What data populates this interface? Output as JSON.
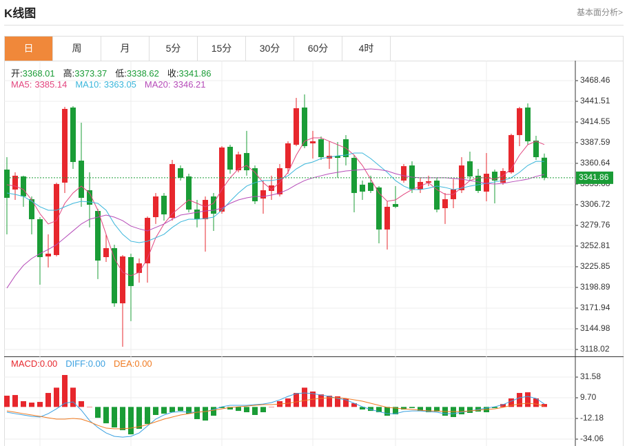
{
  "header": {
    "title": "K线图",
    "link": "基本面分析>"
  },
  "tabs": {
    "items": [
      "日",
      "周",
      "月",
      "5分",
      "15分",
      "30分",
      "60分",
      "4时"
    ],
    "active": 0
  },
  "chart_data": [
    {
      "type": "candlestick",
      "info_labels": [
        "开:",
        "高:",
        "低:",
        "收:"
      ],
      "info_color": "#1a9c36",
      "up_color": "#e7272d",
      "down_color": "#1a9c36",
      "open": [
        3352.5,
        3326.5,
        3343.6,
        3313.9,
        3287.8,
        3239.3,
        3241.1,
        3335.5,
        3433.4,
        3364.2,
        3325.6,
        3298.6,
        3238.4,
        3250.1,
        3178.2,
        3238.4,
        3217.8,
        3230.3,
        3290.5,
        3318.4,
        3289.6,
        3354.3,
        3343.6,
        3300.4,
        3287.8,
        3317.5,
        3297.7,
        3382.2,
        3351.6,
        3374.1,
        3354.3,
        3314.8,
        3324.7,
        3320.2,
        3354.3,
        3384.9,
        3433.4,
        3386.7,
        3392.1,
        3366.9,
        3370.5,
        3392.1,
        3367.8,
        3332.8,
        3335.5,
        3329.2,
        3274.4,
        3307.6,
        3338.2,
        3357.9,
        3326.5,
        3335.5,
        3338.2,
        3302.2,
        3313.9,
        3325.6,
        3363.3,
        3344.5,
        3323.8,
        3349.8,
        3335.5,
        3348.9,
        3397.5,
        3433.4,
        3390.3,
        3368.01
      ],
      "high": [
        3368.7,
        3348.9,
        3344.5,
        3317.5,
        3290.5,
        3268.1,
        3335.5,
        3434.3,
        3435.2,
        3413.6,
        3348.9,
        3301.3,
        3268.1,
        3254.6,
        3241.1,
        3242.9,
        3236.6,
        3291.4,
        3322.0,
        3322.0,
        3365.1,
        3357.9,
        3347.1,
        3313.0,
        3317.5,
        3322.0,
        3383.1,
        3384.9,
        3375.9,
        3402.9,
        3357.9,
        3338.2,
        3344.5,
        3359.7,
        3389.4,
        3446.0,
        3450.5,
        3402.9,
        3395.7,
        3389.4,
        3388.5,
        3397.5,
        3371.4,
        3338.2,
        3344.5,
        3331.0,
        3311.2,
        3331.0,
        3359.7,
        3363.3,
        3341.8,
        3344.5,
        3341.8,
        3322.0,
        3340.0,
        3368.7,
        3375.9,
        3353.4,
        3374.1,
        3352.5,
        3354.3,
        3399.3,
        3434.3,
        3438.8,
        3396.6,
        3373.37
      ],
      "low": [
        3268.1,
        3313.0,
        3304.0,
        3268.1,
        3202.5,
        3224.9,
        3239.3,
        3322.0,
        3353.4,
        3304.0,
        3277.1,
        3209.7,
        3232.1,
        3173.7,
        3121.6,
        3154.9,
        3205.2,
        3205.2,
        3281.6,
        3286.0,
        3286.0,
        3338.2,
        3296.8,
        3277.1,
        3245.6,
        3272.6,
        3295.0,
        3347.1,
        3348.9,
        3344.5,
        3307.6,
        3295.0,
        3313.0,
        3317.5,
        3347.1,
        3383.1,
        3380.4,
        3366.9,
        3365.1,
        3353.4,
        3341.8,
        3357.9,
        3296.8,
        3313.0,
        3322.0,
        3256.4,
        3248.3,
        3302.2,
        3335.5,
        3322.0,
        3322.0,
        3331.0,
        3296.8,
        3281.6,
        3302.2,
        3322.0,
        3338.2,
        3322.0,
        3311.2,
        3308.5,
        3332.8,
        3347.1,
        3383.1,
        3384.9,
        3365.1,
        3338.62
      ],
      "close": [
        3315.7,
        3344.5,
        3317.5,
        3287.8,
        3238.4,
        3242.9,
        3333.7,
        3431.6,
        3362.4,
        3315.7,
        3306.7,
        3233.9,
        3250.1,
        3178.2,
        3239.3,
        3200.7,
        3230.3,
        3289.6,
        3317.5,
        3294.1,
        3359.7,
        3341.8,
        3300.4,
        3287.8,
        3313.0,
        3295.0,
        3381.3,
        3352.5,
        3372.3,
        3351.6,
        3311.2,
        3325.6,
        3331.9,
        3354.3,
        3386.7,
        3432.5,
        3383.1,
        3389.4,
        3368.7,
        3370.5,
        3367.8,
        3368.7,
        3322.0,
        3323.8,
        3324.7,
        3274.4,
        3304.0,
        3304.0,
        3357.0,
        3326.5,
        3336.4,
        3337.3,
        3300.4,
        3313.9,
        3326.5,
        3357.9,
        3343.6,
        3324.7,
        3347.1,
        3338.2,
        3350.7,
        3397.5,
        3432.5,
        3389.4,
        3368.7,
        3341.86
      ],
      "series": [
        {
          "name": "MA5:",
          "color": "#e2457e",
          "values": [
            3332.8,
            3331.0,
            3326.5,
            3313.0,
            3295.0,
            3281.6,
            3286.0,
            3308.5,
            3322.0,
            3331.0,
            3322.0,
            3299.5,
            3268.1,
            3236.6,
            3218.7,
            3214.2,
            3218.7,
            3236.6,
            3263.6,
            3281.6,
            3295.0,
            3304.0,
            3313.0,
            3308.5,
            3304.0,
            3308.5,
            3326.5,
            3341.8,
            3353.4,
            3357.9,
            3348.9,
            3335.5,
            3326.5,
            3335.5,
            3348.9,
            3371.4,
            3389.4,
            3393.9,
            3393.9,
            3389.4,
            3384.9,
            3380.4,
            3371.4,
            3357.9,
            3340.0,
            3322.0,
            3311.2,
            3313.0,
            3320.2,
            3326.5,
            3331.0,
            3335.5,
            3326.5,
            3320.2,
            3320.2,
            3329.2,
            3338.2,
            3341.8,
            3341.8,
            3340.0,
            3344.5,
            3353.4,
            3371.4,
            3384.9,
            3389.4,
            3385.14
          ]
        },
        {
          "name": "MA10:",
          "color": "#3ab6db",
          "values": [
            3322.0,
            3320.2,
            3317.5,
            3311.2,
            3304.0,
            3299.5,
            3299.5,
            3304.0,
            3308.5,
            3311.2,
            3310.3,
            3308.5,
            3299.5,
            3281.6,
            3268.1,
            3259.1,
            3257.3,
            3259.1,
            3263.6,
            3268.1,
            3277.1,
            3284.3,
            3287.8,
            3287.8,
            3288.7,
            3290.5,
            3299.5,
            3311.2,
            3322.0,
            3331.0,
            3335.5,
            3338.2,
            3338.2,
            3340.0,
            3344.5,
            3353.4,
            3359.7,
            3362.4,
            3366.9,
            3368.7,
            3370.5,
            3371.4,
            3374.1,
            3374.1,
            3366.9,
            3357.9,
            3348.9,
            3338.2,
            3331.0,
            3326.5,
            3326.5,
            3328.3,
            3331.0,
            3329.2,
            3326.5,
            3328.3,
            3331.0,
            3332.8,
            3334.6,
            3336.4,
            3338.2,
            3341.8,
            3348.9,
            3357.9,
            3363.3,
            3363.05
          ]
        },
        {
          "name": "MA20:",
          "color": "#b54ab8",
          "values": [
            3198.0,
            3214.2,
            3227.6,
            3236.6,
            3242.9,
            3248.3,
            3254.6,
            3263.6,
            3272.6,
            3281.6,
            3287.8,
            3290.5,
            3293.2,
            3290.5,
            3286.0,
            3278.9,
            3275.3,
            3272.6,
            3277.1,
            3281.6,
            3287.8,
            3293.2,
            3295.0,
            3296.8,
            3298.6,
            3299.5,
            3302.2,
            3308.5,
            3313.0,
            3315.7,
            3317.5,
            3317.5,
            3319.3,
            3322.0,
            3326.5,
            3332.8,
            3338.2,
            3341.8,
            3344.5,
            3347.1,
            3348.9,
            3350.7,
            3351.6,
            3352.5,
            3353.4,
            3352.5,
            3350.7,
            3347.1,
            3344.5,
            3342.6,
            3341.8,
            3341.8,
            3341.8,
            3341.8,
            3340.9,
            3340.0,
            3338.2,
            3336.4,
            3334.6,
            3333.7,
            3334.6,
            3336.4,
            3338.2,
            3340.0,
            3343.6,
            3346.21
          ]
        }
      ],
      "ylim": [
        3109.0,
        3492.7
      ],
      "yticks": [
        3468.46,
        3441.51,
        3414.55,
        3387.59,
        3360.64,
        3333.68,
        3306.72,
        3279.76,
        3252.81,
        3225.85,
        3198.89,
        3171.94,
        3144.98,
        3118.02
      ],
      "grid": true
    },
    {
      "type": "macd",
      "up_color": "#e7272d",
      "down_color": "#1a9c36",
      "series": [
        {
          "name": "MACD:",
          "color": "#e7272d",
          "legend_value": {
            "value": 0,
            "label": "0.00"
          },
          "values": [
            11.9,
            12.6,
            6.1,
            4.6,
            5.3,
            14.8,
            20.4,
            33.8,
            20.4,
            6.1,
            0.2,
            -11.5,
            -17.3,
            -21.7,
            -24.6,
            -29.0,
            -23.1,
            -18.0,
            -8.5,
            -7.1,
            -5.6,
            -4.2,
            -7.1,
            -12.9,
            -14.4,
            -9.3,
            -1.2,
            -2.7,
            -4.2,
            -5.6,
            -8.5,
            -5.6,
            0.2,
            6.1,
            9.0,
            14.8,
            20.4,
            16.3,
            13.3,
            11.9,
            11.2,
            9.0,
            3.9,
            -2.7,
            -4.2,
            -5.6,
            -9.3,
            -7.8,
            -2.7,
            -1.2,
            -4.2,
            -5.6,
            -4.9,
            -9.3,
            -10.7,
            -7.8,
            -6.3,
            -4.9,
            -5.6,
            -1.2,
            3.1,
            9.0,
            14.8,
            15.5,
            9.0,
            3.1
          ]
        },
        {
          "name": "DIFF:",
          "color": "#3aa0e0",
          "legend_value": {
            "value": 0,
            "label": "0.00"
          },
          "values": [
            -5.6,
            -7.1,
            -8.5,
            -10.0,
            -10.7,
            -7.1,
            -2.0,
            3.9,
            5.3,
            -3.4,
            -14.4,
            -21.7,
            -27.5,
            -31.1,
            -31.9,
            -31.1,
            -27.5,
            -20.2,
            -12.9,
            -8.5,
            -5.6,
            -4.9,
            -5.6,
            -5.6,
            -4.9,
            -2.7,
            0.2,
            1.7,
            1.7,
            1.7,
            2.4,
            3.1,
            4.6,
            7.5,
            11.2,
            14.1,
            14.8,
            14.1,
            12.6,
            11.2,
            9.0,
            7.5,
            3.9,
            0.2,
            -2.7,
            -4.9,
            -7.1,
            -7.1,
            -4.9,
            -4.2,
            -4.2,
            -4.9,
            -5.6,
            -7.1,
            -7.1,
            -5.6,
            -4.2,
            -2.7,
            -1.2,
            0.2,
            2.4,
            6.1,
            9.7,
            11.2,
            9.0,
            3.1
          ]
        },
        {
          "name": "DEA:",
          "color": "#f07a20",
          "legend_value": {
            "value": 0,
            "label": "0.00"
          },
          "values": [
            -4.2,
            -5.6,
            -7.1,
            -8.5,
            -10.0,
            -11.5,
            -12.9,
            -12.9,
            -12.2,
            -12.9,
            -15.8,
            -19.5,
            -22.4,
            -23.1,
            -23.1,
            -22.4,
            -20.9,
            -18.7,
            -15.8,
            -12.9,
            -10.7,
            -8.5,
            -7.1,
            -5.6,
            -4.9,
            -3.4,
            -2.0,
            -0.5,
            0.2,
            0.9,
            1.7,
            2.4,
            2.4,
            3.1,
            3.9,
            5.3,
            6.8,
            8.2,
            9.0,
            9.7,
            9.7,
            9.0,
            7.5,
            6.1,
            3.9,
            1.7,
            -0.5,
            -1.2,
            -2.0,
            -2.7,
            -3.4,
            -4.2,
            -4.2,
            -4.9,
            -4.9,
            -4.9,
            -4.2,
            -3.4,
            -2.7,
            -2.0,
            -0.5,
            1.7,
            3.1,
            3.9,
            3.1,
            0.9
          ]
        }
      ],
      "ylim": [
        -40.6,
        51.3
      ],
      "yticks": [
        31.58,
        {
          "value": 9.7,
          "label": "9.70"
        },
        -12.18,
        -34.06
      ],
      "grid": true
    }
  ]
}
